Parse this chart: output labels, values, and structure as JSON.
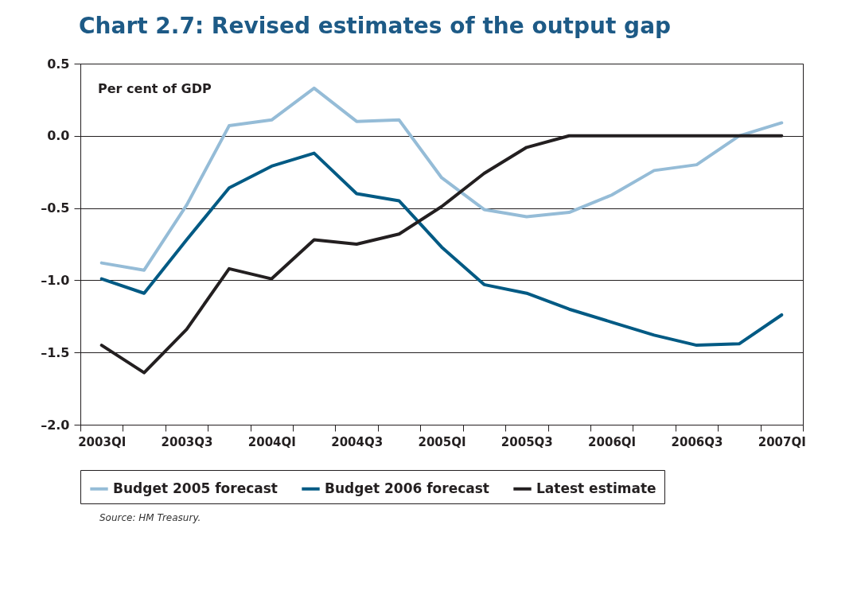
{
  "chart_data": {
    "type": "line",
    "title": "Chart 2.7: Revised estimates of the output gap",
    "ylabel": "Per cent of GDP",
    "categories": [
      "2003QI",
      null,
      "2003Q3",
      null,
      "2004QI",
      null,
      "2004Q3",
      null,
      "2005QI",
      null,
      "2005Q3",
      null,
      "2006QI",
      null,
      "2006Q3",
      null,
      "2007QI"
    ],
    "series": [
      {
        "name": "Budget 2005 forecast",
        "color": "#95bcd7",
        "values": [
          -0.88,
          -0.93,
          -0.48,
          0.07,
          0.11,
          0.33,
          0.1,
          0.11,
          -0.29,
          -0.51,
          -0.56,
          -0.53,
          -0.41,
          -0.24,
          -0.2,
          0.0,
          0.09
        ]
      },
      {
        "name": "Budget 2006 forecast",
        "color": "#005a84",
        "values": [
          -0.99,
          -1.09,
          -0.72,
          -0.36,
          -0.21,
          -0.12,
          -0.4,
          -0.45,
          -0.77,
          -1.03,
          -1.09,
          -1.2,
          -1.29,
          -1.38,
          -1.45,
          -1.44,
          -1.24
        ]
      },
      {
        "name": "Latest estimate",
        "color": "#231f20",
        "values": [
          -1.45,
          -1.64,
          -1.34,
          -0.92,
          -0.99,
          -0.72,
          -0.75,
          -0.68,
          -0.49,
          -0.26,
          -0.08,
          0.0,
          0.0,
          0.0,
          0.0,
          0.0,
          0.0
        ]
      }
    ],
    "ylim": [
      -2.0,
      0.5
    ],
    "yticks": [
      0.5,
      {
        "value": 0,
        "label": "0.0"
      },
      {
        "value": -0.5,
        "label": "–0.5"
      },
      {
        "value": -1.0,
        "label": "–1.0"
      },
      {
        "value": -1.5,
        "label": "–1.5"
      },
      {
        "value": -2.0,
        "label": "–2.0"
      }
    ],
    "grid": "y",
    "legend": "bottom",
    "line_style": "solid",
    "marker": "none",
    "annotations": [
      "Source: HM Treasury."
    ]
  }
}
